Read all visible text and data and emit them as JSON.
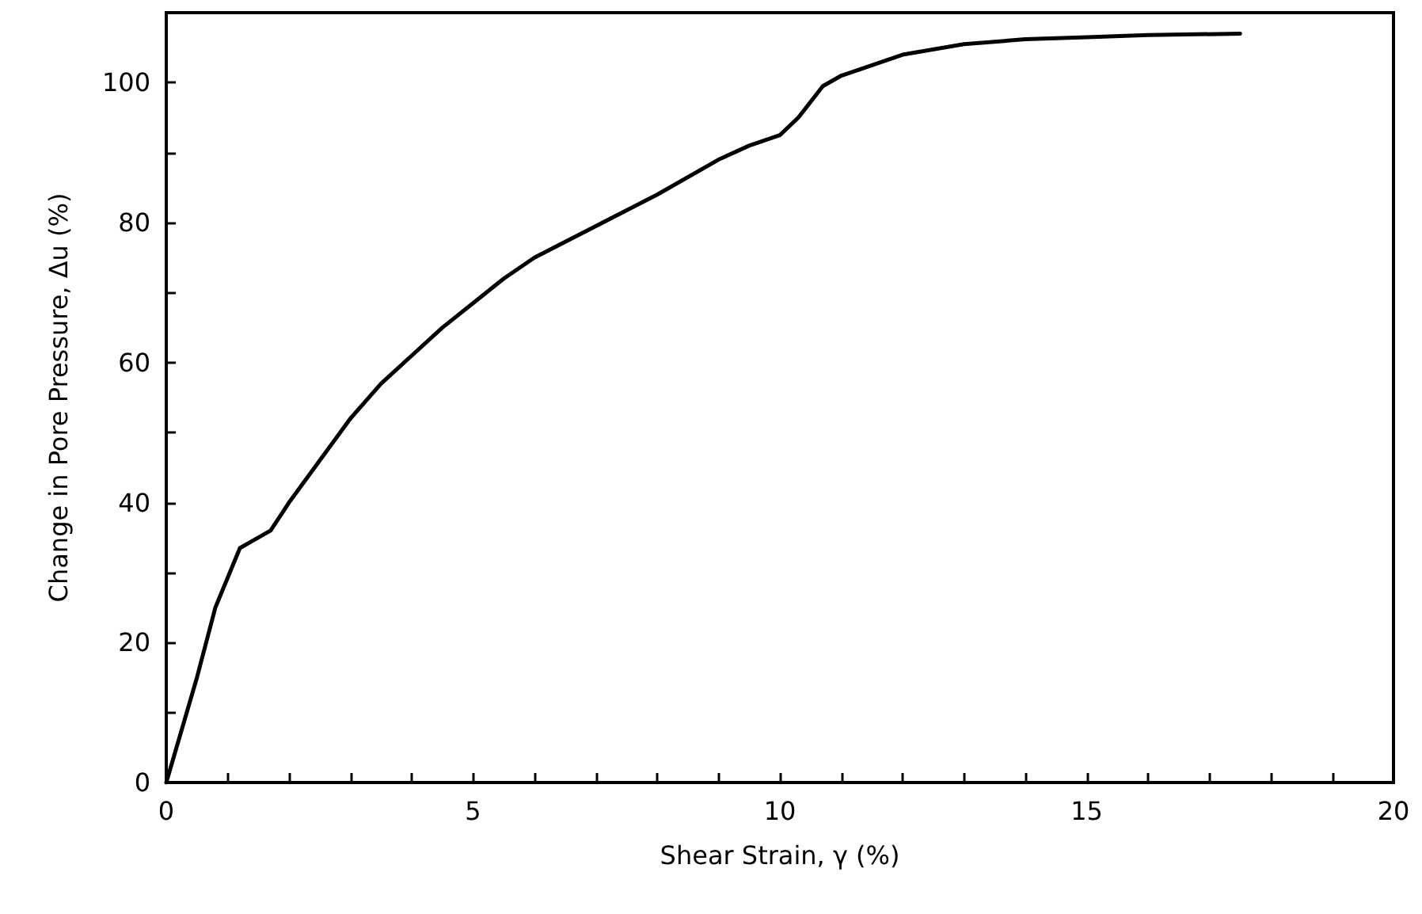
{
  "chart_data": {
    "type": "line",
    "xlabel": "Shear Strain, γ (%)",
    "ylabel": "Change in Pore Pressure, Δu (%)",
    "xlim": [
      0,
      20
    ],
    "ylim": [
      0,
      110
    ],
    "xticks": [
      0,
      {
        "value": 1,
        "label": null
      },
      {
        "value": 2,
        "label": null
      },
      {
        "value": 3,
        "label": null
      },
      {
        "value": 4,
        "label": null
      },
      5,
      {
        "value": 6,
        "label": null
      },
      {
        "value": 7,
        "label": null
      },
      {
        "value": 8,
        "label": null
      },
      {
        "value": 9,
        "label": null
      },
      10,
      {
        "value": 11,
        "label": null
      },
      {
        "value": 12,
        "label": null
      },
      {
        "value": 13,
        "label": null
      },
      {
        "value": 14,
        "label": null
      },
      15,
      {
        "value": 16,
        "label": null
      },
      {
        "value": 17,
        "label": null
      },
      {
        "value": 18,
        "label": null
      },
      {
        "value": 19,
        "label": null
      },
      20
    ],
    "yticks": [
      0,
      {
        "value": 10,
        "label": null
      },
      20,
      {
        "value": 30,
        "label": null
      },
      40,
      {
        "value": 50,
        "label": null
      },
      60,
      {
        "value": 70,
        "label": null
      },
      80,
      {
        "value": 90,
        "label": null
      },
      100
    ],
    "x": [
      0,
      0.2,
      0.5,
      0.8,
      1.2,
      1.4,
      1.7,
      2,
      2.5,
      3,
      3.5,
      4,
      4.5,
      5,
      5.5,
      6,
      7,
      8,
      9,
      9.5,
      10,
      10.3,
      10.7,
      11,
      11.5,
      12,
      13,
      14,
      15,
      16,
      17.5
    ],
    "series": [
      {
        "color": "#000000",
        "values": [
          0,
          6,
          15,
          25,
          33.5,
          34.5,
          36,
          40,
          46,
          52,
          57,
          61,
          65,
          68.5,
          72,
          75,
          79.5,
          84,
          89,
          91,
          92.5,
          95,
          99.5,
          101,
          102.5,
          104,
          105.5,
          106.2,
          106.5,
          106.8,
          107
        ]
      }
    ],
    "grid": false,
    "marker": "none",
    "line_style": "solid"
  }
}
